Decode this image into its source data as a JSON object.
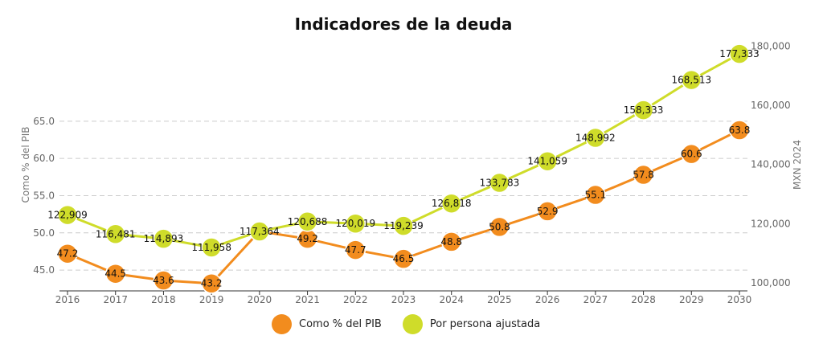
{
  "chart_data": {
    "type": "line",
    "title": "Indicadores de la deuda",
    "x": [
      "2016",
      "2017",
      "2018",
      "2019",
      "2020",
      "2021",
      "2022",
      "2023",
      "2024",
      "2025",
      "2026",
      "2027",
      "2028",
      "2029",
      "2030"
    ],
    "left_axis": {
      "label": "Como % del PIB",
      "ylim": [
        42.2,
        67.2
      ],
      "ticks": [
        "45.0",
        "50.0",
        "55.0",
        "60.0",
        "65.0"
      ]
    },
    "right_axis": {
      "label": "MXN 2024",
      "ylim": [
        97500,
        185000
      ],
      "ticks": [
        "100,000",
        "120,000",
        "140,000",
        "160,000",
        "180,000"
      ]
    },
    "grid": true,
    "legend_position": "bottom",
    "series": [
      {
        "name": "Como % del PIB",
        "axis": "left",
        "color": "#f28c1e",
        "values": [
          47.2,
          44.5,
          43.6,
          43.2,
          50.2,
          49.2,
          47.7,
          46.5,
          48.8,
          50.8,
          52.9,
          55.1,
          57.8,
          60.6,
          63.8
        ],
        "labels": [
          "47.2",
          "44.5",
          "43.6",
          "43.2",
          "",
          "49.2",
          "47.7",
          "46.5",
          "48.8",
          "50.8",
          "52.9",
          "55.1",
          "57.8",
          "60.6",
          "63.8"
        ]
      },
      {
        "name": "Por persona ajustada",
        "axis": "right",
        "color": "#cfdc2a",
        "values": [
          122909,
          116481,
          114893,
          111958,
          117364,
          120688,
          120019,
          119239,
          126818,
          133783,
          141059,
          148992,
          158333,
          168513,
          177333
        ],
        "labels": [
          "122,909",
          "116,481",
          "114,893",
          "111,958",
          "117,364",
          "120,688",
          "120,019",
          "119,239",
          "126,818",
          "133,783",
          "141,059",
          "148,992",
          "158,333",
          "168,513",
          "177,333"
        ]
      }
    ]
  }
}
